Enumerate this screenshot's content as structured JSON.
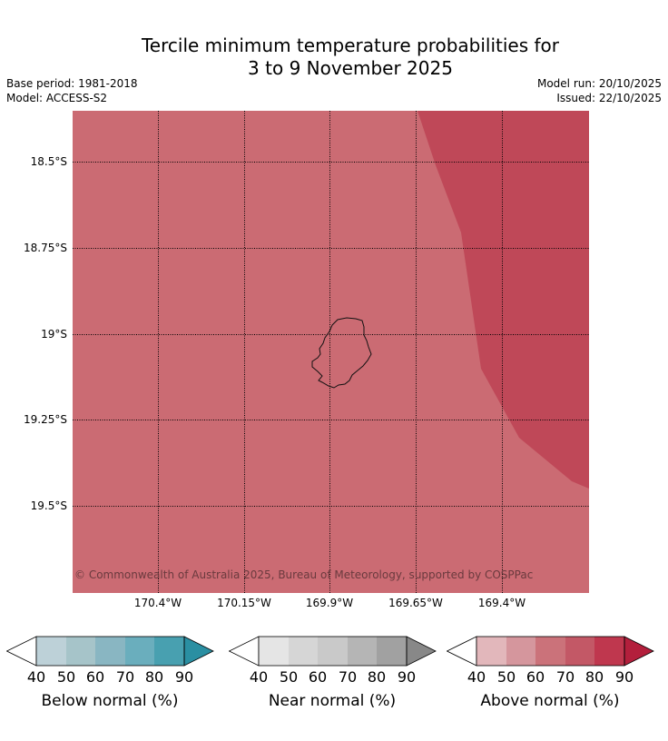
{
  "title_line1": "Tercile minimum temperature probabilities for",
  "title_line2": "3 to 9 November 2025",
  "base_period": "Base period: 1981-2018",
  "model": "Model: ACCESS-S2",
  "model_run": "Model run: 20/10/2025",
  "issued": "Issued: 22/10/2025",
  "copyright": "© Commonwealth of Australia 2025, Bureau of Meteorology, supported by COSPPac",
  "lat_labels": [
    "18.5°S",
    "18.75°S",
    "19°S",
    "19.25°S",
    "19.5°S"
  ],
  "lon_labels": [
    "170.4°W",
    "170.15°W",
    "169.9°W",
    "169.65°W",
    "169.4°W"
  ],
  "colors": {
    "map_base": "#cb6b73",
    "map_dark": "#bf4858",
    "below": [
      "#bdd1d8",
      "#a6c4c9",
      "#89b6c2",
      "#6aaebd",
      "#48a0b0",
      "#2a8fa2"
    ],
    "near": [
      "#e5e5e5",
      "#d6d6d6",
      "#c9c9c9",
      "#b5b5b5",
      "#a1a1a1",
      "#888888"
    ],
    "above": [
      "#e2b7bb",
      "#d5969d",
      "#cb727a",
      "#c35866",
      "#bf374e",
      "#b31f3c"
    ]
  },
  "legends": [
    {
      "key": "below",
      "caption": "Below normal (%)",
      "ticks": [
        "40",
        "50",
        "60",
        "70",
        "80",
        "90"
      ]
    },
    {
      "key": "near",
      "caption": "Near normal (%)",
      "ticks": [
        "40",
        "50",
        "60",
        "70",
        "80",
        "90"
      ]
    },
    {
      "key": "above",
      "caption": "Above normal (%)",
      "ticks": [
        "40",
        "50",
        "60",
        "70",
        "80",
        "90"
      ]
    }
  ]
}
